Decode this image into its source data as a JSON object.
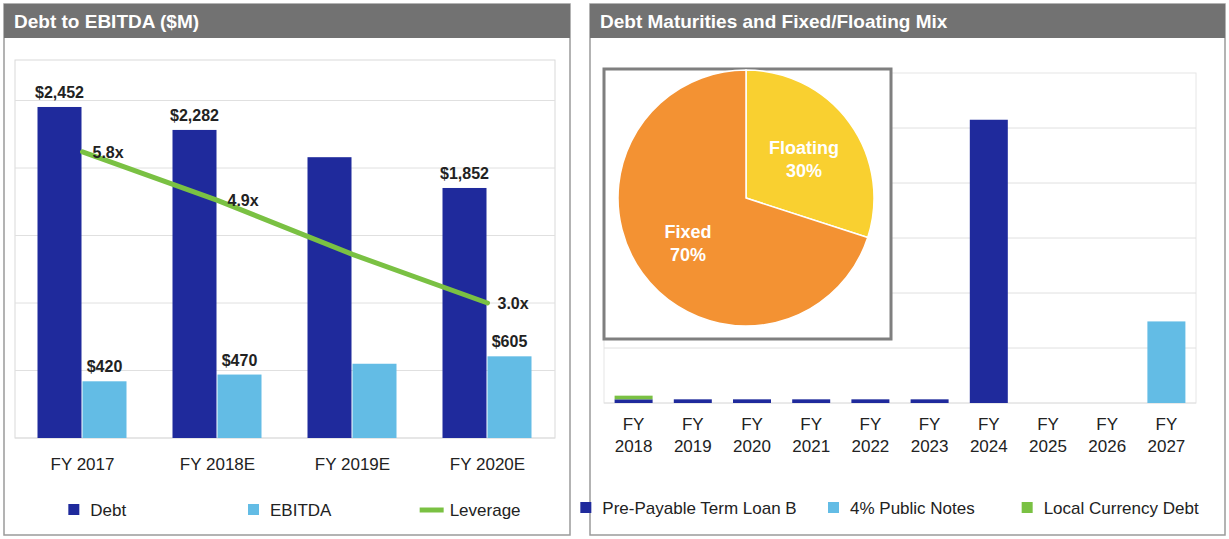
{
  "chart_data": [
    {
      "type": "bar",
      "title": "Debt to EBITDA ($M)",
      "categories": [
        "FY 2017",
        "FY 2018E",
        "FY 2019E",
        "FY 2020E"
      ],
      "series": [
        {
          "name": "Debt",
          "type": "bar",
          "color": "#1f2a9c",
          "values": [
            2452,
            2282,
            2080,
            1852
          ],
          "value_labels": [
            "$2,452",
            "$2,282",
            null,
            "$1,852"
          ]
        },
        {
          "name": "EBITDA",
          "type": "bar",
          "color": "#63bce5",
          "values": [
            420,
            470,
            550,
            605
          ],
          "value_labels": [
            "$420",
            "$470",
            null,
            "$605"
          ]
        },
        {
          "name": "Leverage",
          "type": "line",
          "axis": "y2",
          "color": "#7ac143",
          "values": [
            5.8,
            4.9,
            3.9,
            3.0
          ],
          "value_labels": [
            "5.8x",
            "4.9x",
            null,
            "3.0x"
          ]
        }
      ],
      "ylim": [
        0,
        2800
      ],
      "yticks": [
        0,
        500,
        1000,
        1500,
        2000,
        2500
      ],
      "y2lim": [
        0.5,
        7.5
      ],
      "grid": true,
      "tick_labels": "x",
      "data_labels": true,
      "legend": "bottom"
    },
    {
      "type": "bar",
      "title": "Debt Maturities and Fixed/Floating Mix",
      "categories": [
        "FY 2018",
        "FY 2019",
        "FY 2020",
        "FY 2021",
        "FY 2022",
        "FY 2023",
        "FY 2024",
        "FY 2025",
        "FY 2026",
        "FY 2027"
      ],
      "series": [
        {
          "name": "Pre-Payable Term Loan B",
          "color": "#1f2a9c",
          "values": [
            20,
            20,
            20,
            20,
            20,
            20,
            1545,
            0,
            0,
            0
          ]
        },
        {
          "name": "4% Public Notes",
          "color": "#63bce5",
          "values": [
            0,
            0,
            0,
            0,
            0,
            0,
            0,
            0,
            0,
            445
          ]
        },
        {
          "name": "Local Currency Debt",
          "color": "#7ac143",
          "values": [
            20,
            0,
            0,
            0,
            0,
            0,
            0,
            0,
            0,
            0
          ]
        }
      ],
      "stacked": true,
      "ylim": [
        0,
        1800
      ],
      "yticks": [
        0,
        300,
        600,
        900,
        1200,
        1500
      ],
      "grid": true,
      "tick_labels": "x",
      "legend": "bottom"
    },
    {
      "type": "pie",
      "categories": [
        "Floating",
        "Fixed"
      ],
      "values": [
        30,
        70
      ],
      "value_labels": [
        "30%",
        "70%"
      ],
      "colors": [
        "#f9d030",
        "#f39233"
      ],
      "data_labels": true
    }
  ]
}
